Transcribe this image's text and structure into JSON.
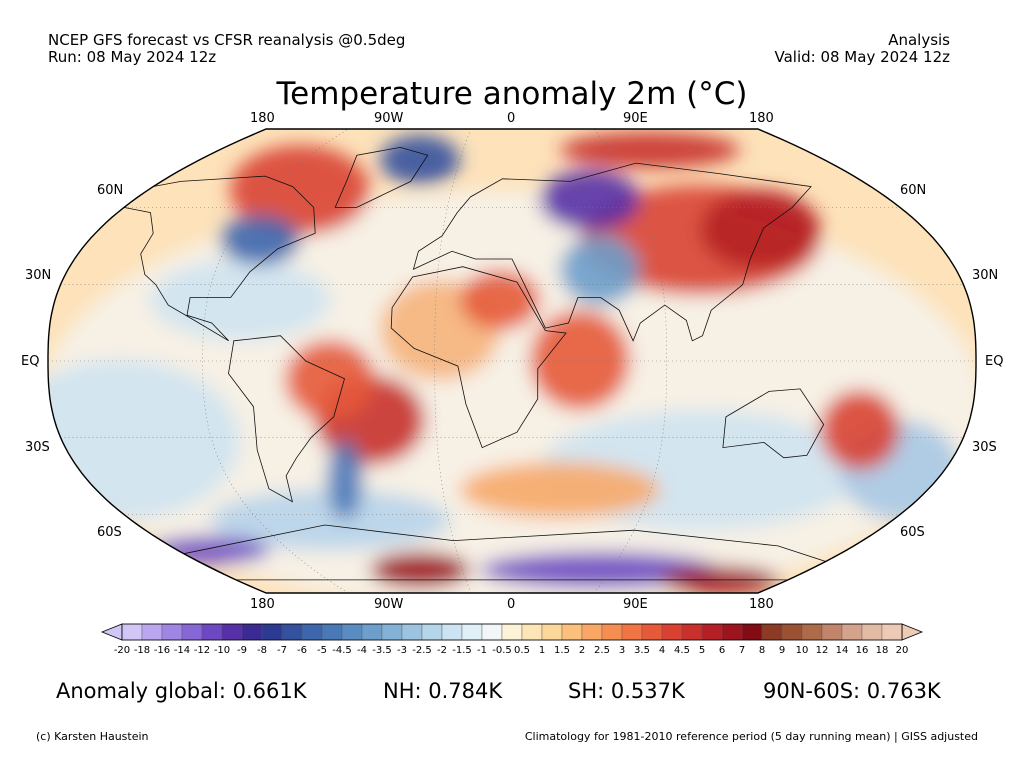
{
  "header": {
    "line1_left": "NCEP GFS forecast vs CFSR reanalysis @0.5deg",
    "line2_left": "Run: 08 May 2024 12z",
    "line1_right": "Analysis",
    "line2_right": "Valid: 08 May 2024 12z"
  },
  "title": "Temperature anomaly 2m (°C)",
  "longitude_labels": [
    "180",
    "90W",
    "0",
    "90E",
    "180"
  ],
  "latitude_labels": [
    "60N",
    "30N",
    "EQ",
    "30S",
    "60S"
  ],
  "colorbar": {
    "ticks": [
      "-20",
      "-18",
      "-16",
      "-14",
      "-12",
      "-10",
      "-9",
      "-8",
      "-7",
      "-6",
      "-5",
      "-4.5",
      "-4",
      "-3.5",
      "-3",
      "-2.5",
      "-2",
      "-1.5",
      "-1",
      "-0.5",
      "0.5",
      "1",
      "1.5",
      "2",
      "2.5",
      "3",
      "3.5",
      "4",
      "4.5",
      "5",
      "6",
      "7",
      "8",
      "9",
      "10",
      "12",
      "14",
      "16",
      "18",
      "20"
    ],
    "colors": [
      "#d2c6f6",
      "#b9a6ee",
      "#9f86e2",
      "#8766d6",
      "#6e48c2",
      "#5630a6",
      "#3c2a94",
      "#2c3a92",
      "#33519e",
      "#3d66ad",
      "#4a79b8",
      "#5a8cc2",
      "#6d9fcc",
      "#83b2d6",
      "#9cc4e0",
      "#b5d5ea",
      "#cce3f1",
      "#e1eff7",
      "#f2f6f8",
      "#fbf2d8",
      "#fce6b8",
      "#fcd79a",
      "#fbc07c",
      "#f9a765",
      "#f68e52",
      "#f07444",
      "#e65a3a",
      "#d94233",
      "#c8302c",
      "#b52026",
      "#9c141d",
      "#820b14",
      "#8c3a24",
      "#9a5233",
      "#ad6b49",
      "#c0856a",
      "#d3a38b",
      "#e2bba4",
      "#eccab6"
    ],
    "under_color": "#d2c6f6",
    "over_color": "#eccab6"
  },
  "stats": {
    "global": "Anomaly global: 0.661K",
    "nh": "NH: 0.784K",
    "sh": "SH: 0.537K",
    "arctic": "90N-60S: 0.763K"
  },
  "footer": {
    "credit": "(c) Karsten Haustein",
    "note": "Climatology for 1981-2010 reference period (5 day running mean) | GISS adjusted"
  }
}
